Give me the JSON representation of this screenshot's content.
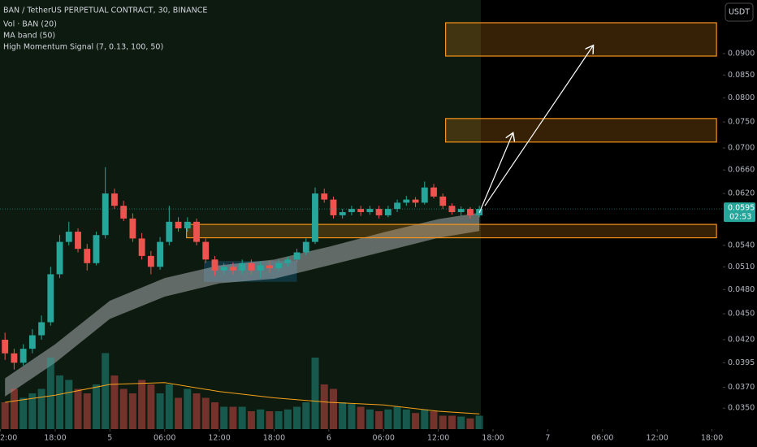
{
  "chart_data": {
    "type": "candlestick",
    "title": "BAN / TetherUS PERPETUAL CONTRACT, 30, BINANCE",
    "indicators": [
      "Vol · BAN (20)",
      "MA band (50)",
      "High Momentum Signal (7, 0.13, 100, 50)"
    ],
    "currency_button": "USDT",
    "log_scale": true,
    "ylim": [
      0.0331,
      0.1038
    ],
    "yticks": [
      {
        "value": 0.035,
        "label": "0.0350"
      },
      {
        "value": 0.037,
        "label": "0.0370"
      },
      0.0395,
      {
        "value": 0.042,
        "label": "0.0420"
      },
      {
        "value": 0.045,
        "label": "0.0450"
      },
      {
        "value": 0.048,
        "label": "0.0480"
      },
      {
        "value": 0.051,
        "label": "0.0510"
      },
      {
        "value": 0.054,
        "label": "0.0540"
      },
      {
        "value": 0.062,
        "label": "0.0620"
      },
      {
        "value": 0.066,
        "label": "0.0660"
      },
      {
        "value": 0.07,
        "label": "0.0700"
      },
      {
        "value": 0.075,
        "label": "0.0750"
      },
      {
        "value": 0.08,
        "label": "0.0800"
      },
      {
        "value": 0.085,
        "label": "0.0850"
      },
      {
        "value": 0.09,
        "label": "0.0900"
      }
    ],
    "xlim": [
      -0.05,
      79.2
    ],
    "xticks": [
      {
        "value": 0,
        "label": "2:00"
      },
      {
        "value": 6,
        "label": "18:00"
      },
      {
        "value": 12,
        "label": "5"
      },
      {
        "value": 18,
        "label": "06:00"
      },
      {
        "value": 24,
        "label": "12:00"
      },
      {
        "value": 30,
        "label": "18:00"
      },
      {
        "value": 36,
        "label": "6"
      },
      {
        "value": 42,
        "label": "06:00"
      },
      {
        "value": 48,
        "label": "12:00"
      },
      {
        "value": 54,
        "label": "18:00"
      },
      {
        "value": 60,
        "label": "7"
      },
      {
        "value": 66,
        "label": "06:00"
      },
      {
        "value": 72,
        "label": "12:00"
      },
      {
        "value": 78,
        "label": "18:00"
      }
    ],
    "up_color": "#26a69a",
    "down_color": "#ef5350",
    "x": [
      0.5,
      1.5,
      2.5,
      3.5,
      4.5,
      5.5,
      6.5,
      7.5,
      8.5,
      9.5,
      10.5,
      11.5,
      12.5,
      13.5,
      14.5,
      15.5,
      16.5,
      17.5,
      18.5,
      19.5,
      20.5,
      21.5,
      22.5,
      23.5,
      24.5,
      25.5,
      26.5,
      27.5,
      28.5,
      29.5,
      30.5,
      31.5,
      32.5,
      33.5,
      34.5,
      35.5,
      36.5,
      37.5,
      38.5,
      39.5,
      40.5,
      41.5,
      42.5,
      43.5,
      44.5,
      45.5,
      46.5,
      47.5,
      48.5,
      49.5,
      50.5,
      51.5,
      52.5
    ],
    "open": [
      0.042,
      0.0405,
      0.0395,
      0.041,
      0.0425,
      0.044,
      0.05,
      0.0545,
      0.056,
      0.0535,
      0.0515,
      0.0555,
      0.062,
      0.06,
      0.058,
      0.055,
      0.0525,
      0.051,
      0.0545,
      0.0575,
      0.0565,
      0.0575,
      0.0545,
      0.052,
      0.0505,
      0.051,
      0.0505,
      0.0515,
      0.0505,
      0.0512,
      0.0508,
      0.0515,
      0.052,
      0.053,
      0.0545,
      0.062,
      0.061,
      0.0585,
      0.059,
      0.0595,
      0.059,
      0.0595,
      0.0585,
      0.0595,
      0.0605,
      0.061,
      0.0605,
      0.063,
      0.0615,
      0.06,
      0.059,
      0.0595,
      0.0585
    ],
    "high": [
      0.0428,
      0.041,
      0.0415,
      0.0432,
      0.0448,
      0.051,
      0.0555,
      0.0575,
      0.0565,
      0.0542,
      0.056,
      0.0665,
      0.0628,
      0.0608,
      0.0588,
      0.0558,
      0.0532,
      0.0552,
      0.06,
      0.0582,
      0.0582,
      0.058,
      0.055,
      0.0525,
      0.0515,
      0.0516,
      0.052,
      0.052,
      0.0517,
      0.0518,
      0.052,
      0.0524,
      0.0535,
      0.055,
      0.063,
      0.0628,
      0.0615,
      0.0595,
      0.06,
      0.06,
      0.06,
      0.06,
      0.06,
      0.061,
      0.0616,
      0.0614,
      0.064,
      0.0636,
      0.062,
      0.0604,
      0.0599,
      0.0598,
      0.06
    ],
    "low": [
      0.0398,
      0.0388,
      0.0392,
      0.0405,
      0.042,
      0.0436,
      0.0495,
      0.054,
      0.053,
      0.0505,
      0.0512,
      0.055,
      0.0595,
      0.0576,
      0.0545,
      0.052,
      0.05,
      0.0506,
      0.054,
      0.056,
      0.056,
      0.054,
      0.0515,
      0.0498,
      0.05,
      0.05,
      0.05,
      0.05,
      0.0495,
      0.0502,
      0.0504,
      0.051,
      0.0516,
      0.0526,
      0.0542,
      0.0605,
      0.058,
      0.058,
      0.0585,
      0.0584,
      0.0586,
      0.058,
      0.0582,
      0.059,
      0.06,
      0.0598,
      0.0602,
      0.0612,
      0.0595,
      0.0586,
      0.0584,
      0.058,
      0.0582
    ],
    "close": [
      0.0405,
      0.0395,
      0.041,
      0.0425,
      0.044,
      0.05,
      0.0545,
      0.056,
      0.0535,
      0.0515,
      0.0555,
      0.062,
      0.06,
      0.058,
      0.055,
      0.0525,
      0.051,
      0.0545,
      0.0575,
      0.0565,
      0.0575,
      0.0545,
      0.052,
      0.0505,
      0.051,
      0.0505,
      0.0515,
      0.0505,
      0.0512,
      0.0508,
      0.0515,
      0.052,
      0.053,
      0.0545,
      0.062,
      0.061,
      0.0585,
      0.059,
      0.0595,
      0.059,
      0.0595,
      0.0585,
      0.0595,
      0.0605,
      0.061,
      0.0605,
      0.063,
      0.0615,
      0.06,
      0.059,
      0.0595,
      0.0585,
      0.0595
    ],
    "volume": [
      30,
      45,
      35,
      40,
      45,
      80,
      60,
      55,
      45,
      40,
      50,
      85,
      60,
      45,
      40,
      55,
      50,
      40,
      50,
      35,
      45,
      40,
      35,
      30,
      25,
      25,
      25,
      20,
      22,
      20,
      20,
      22,
      25,
      30,
      80,
      50,
      45,
      30,
      28,
      25,
      22,
      20,
      22,
      25,
      22,
      18,
      22,
      20,
      15,
      15,
      14,
      12,
      15
    ],
    "volume_lim": [
      0,
      100
    ],
    "volume_ma": {
      "color": "#f7a21b",
      "x": [
        0.5,
        6,
        12,
        18,
        24,
        30,
        36,
        42,
        48,
        52.5
      ],
      "values": [
        30,
        38,
        50,
        52,
        42,
        35,
        30,
        27,
        20,
        17
      ]
    },
    "ma_band": {
      "color": "#c8cbd2",
      "x": [
        0.5,
        6,
        12,
        18,
        24,
        30,
        36,
        42,
        48,
        52.5
      ],
      "upper": [
        0.0379,
        0.0415,
        0.0466,
        0.0495,
        0.0512,
        0.052,
        0.0538,
        0.0559,
        0.0579,
        0.0589
      ],
      "lower": [
        0.0361,
        0.0395,
        0.0444,
        0.0471,
        0.0488,
        0.0494,
        0.0512,
        0.0531,
        0.0551,
        0.0561
      ]
    },
    "signal_box": {
      "color": "#0f3a44",
      "x": [
        22.3,
        32.5
      ],
      "y": [
        0.049,
        0.0518
      ]
    },
    "zones": [
      {
        "x": [
          20.4,
          78.5
        ],
        "y": [
          0.0551,
          0.0571
        ]
      },
      {
        "x": [
          48.8,
          78.5
        ],
        "y": [
          0.0711,
          0.0757
        ]
      },
      {
        "x": [
          48.8,
          78.5
        ],
        "y": [
          0.0894,
          0.0977
        ]
      }
    ],
    "zone_color": "#f7931a",
    "arrows": [
      {
        "x": [
          52.5,
          56.2
        ],
        "y": [
          0.0589,
          0.0729
        ]
      },
      {
        "x": [
          53.1,
          65.0
        ],
        "y": [
          0.06,
          0.092
        ]
      }
    ],
    "last_price": {
      "value": 0.0595,
      "label": "0.0595"
    },
    "countdown": "02:53"
  }
}
